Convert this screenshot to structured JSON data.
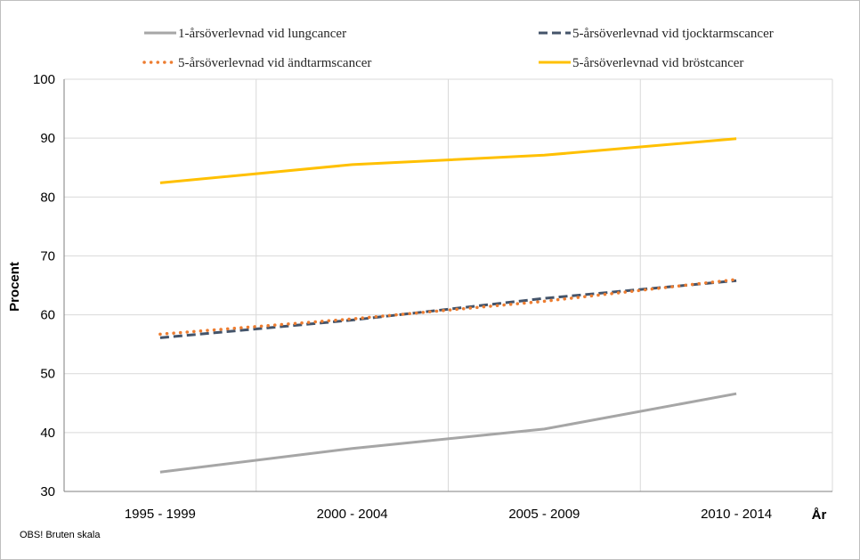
{
  "chart_data": {
    "type": "line",
    "title": "",
    "xlabel": "År",
    "ylabel": "Procent",
    "categories": [
      "1995 - 1999",
      "2000 - 2004",
      "2005 - 2009",
      "2010 - 2014"
    ],
    "ylim": [
      30,
      100
    ],
    "yticks": [
      30,
      40,
      50,
      60,
      70,
      80,
      90,
      100
    ],
    "grid": true,
    "legend_position": "top",
    "note": "OBS! Bruten skala",
    "series": [
      {
        "name": "1-årsöverlevnad vid lungcancer",
        "values": [
          33.3,
          37.3,
          40.6,
          46.6
        ],
        "color": "#a6a6a6",
        "style": "solid"
      },
      {
        "name": "5-årsöverlevnad vid tjocktarmscancer",
        "values": [
          56.1,
          59.1,
          62.8,
          65.8
        ],
        "color": "#44546a",
        "style": "dashed"
      },
      {
        "name": "5-årsöverlevnad vid ändtarmscancer",
        "values": [
          56.7,
          59.3,
          62.3,
          66.0
        ],
        "color": "#ed7d31",
        "style": "dotted"
      },
      {
        "name": "5-årsöverlevnad vid bröstcancer",
        "values": [
          82.4,
          85.5,
          87.1,
          89.9
        ],
        "color": "#ffc000",
        "style": "solid"
      }
    ]
  }
}
